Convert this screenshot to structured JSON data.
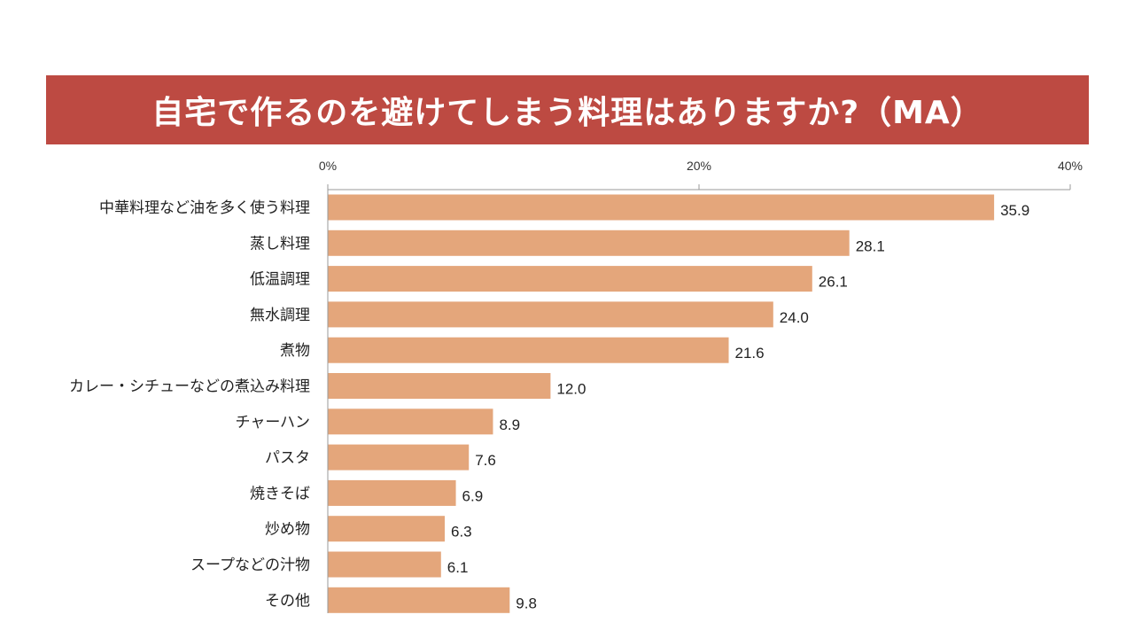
{
  "colors": {
    "banner": "#BD4A42",
    "bar": "#E4A67B",
    "axis": "#9A9A9A",
    "text": "#222222"
  },
  "chart_data": {
    "type": "bar",
    "orientation": "horizontal",
    "title": "自宅で作るのを避けてしまう料理はありますか?（MA）",
    "categories": [
      "中華料理など油を多く使う料理",
      "蒸し料理",
      "低温調理",
      "無水調理",
      "煮物",
      "カレー・シチューなどの煮込み料理",
      "チャーハン",
      "パスタ",
      "焼きそば",
      "炒め物",
      "スープなどの汁物",
      "その他"
    ],
    "values": [
      35.9,
      28.1,
      26.1,
      24.0,
      21.6,
      12.0,
      8.9,
      7.6,
      6.9,
      6.3,
      6.1,
      9.8
    ],
    "value_labels": [
      "35.9",
      "28.1",
      "26.1",
      "24.0",
      "21.6",
      "12.0",
      "8.9",
      "7.6",
      "6.9",
      "6.3",
      "6.1",
      "9.8"
    ],
    "x_ticks": [
      {
        "value": 0,
        "label": "0%"
      },
      {
        "value": 20,
        "label": "20%"
      },
      {
        "value": 40,
        "label": "40%"
      }
    ],
    "xlim": [
      0,
      40
    ],
    "axis_position": "top",
    "grid": false,
    "legend": "none"
  }
}
